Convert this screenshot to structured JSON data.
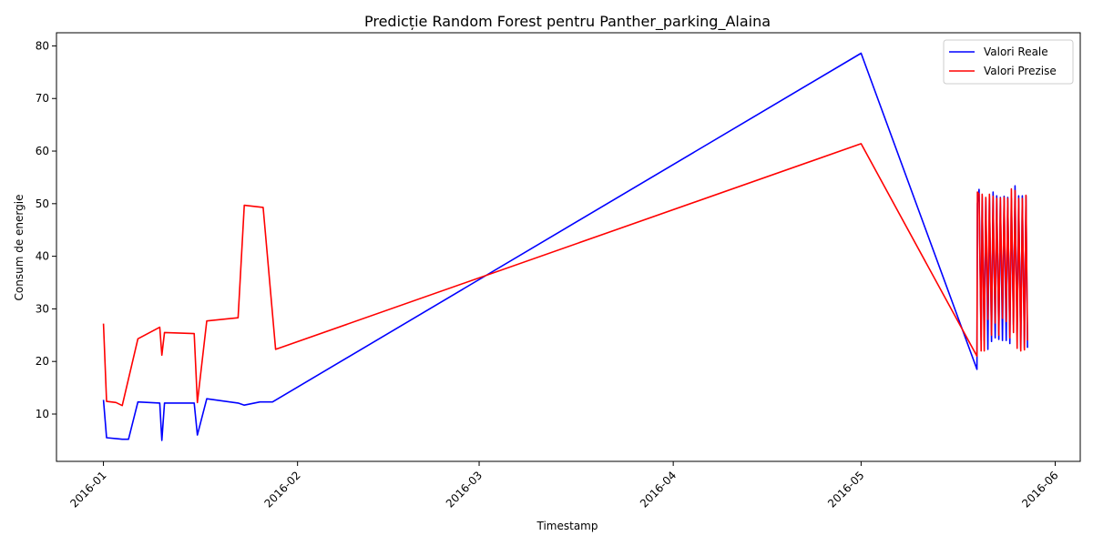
{
  "chart_data": {
    "type": "line",
    "title": "Predicție Random Forest pentru Panther_parking_Alaina",
    "xlabel": "Timestamp",
    "ylabel": "Consum de energie",
    "x_axis_type": "date",
    "xlim": [
      "2015-12-24T12:00",
      "2016-06-05"
    ],
    "ylim": [
      1,
      82.5
    ],
    "x_ticks": [
      "2016-01-01",
      "2016-02-01",
      "2016-03-01",
      "2016-04-01",
      "2016-05-01",
      "2016-06-01"
    ],
    "x_tick_labels": [
      "2016-01",
      "2016-02",
      "2016-03",
      "2016-04",
      "2016-05",
      "2016-06"
    ],
    "y_ticks": [
      10,
      20,
      30,
      40,
      50,
      60,
      70,
      80
    ],
    "legend_position": "top-right",
    "grid": false,
    "series": [
      {
        "name": "Valori Reale",
        "color": "#0000ff",
        "points": [
          [
            "2016-01-01T00:00",
            12.7
          ],
          [
            "2016-01-01T12:00",
            5.5
          ],
          [
            "2016-01-04T00:00",
            5.2
          ],
          [
            "2016-01-05T00:00",
            5.2
          ],
          [
            "2016-01-06T12:00",
            12.3
          ],
          [
            "2016-01-10T00:00",
            12.1
          ],
          [
            "2016-01-10T08:00",
            5.0
          ],
          [
            "2016-01-10T18:00",
            12.1
          ],
          [
            "2016-01-15T12:00",
            12.1
          ],
          [
            "2016-01-16T00:00",
            6.0
          ],
          [
            "2016-01-17T12:00",
            12.9
          ],
          [
            "2016-01-22T12:00",
            12.1
          ],
          [
            "2016-01-23T12:00",
            11.7
          ],
          [
            "2016-01-26T00:00",
            12.3
          ],
          [
            "2016-01-28T00:00",
            12.3
          ],
          [
            "2016-05-01T00:00",
            78.6
          ],
          [
            "2016-05-19T12:00",
            18.5
          ],
          [
            "2016-05-19T14:00",
            50.0
          ],
          [
            "2016-05-19T20:00",
            52.7
          ],
          [
            "2016-05-20T04:00",
            24.0
          ],
          [
            "2016-05-20T08:00",
            51.6
          ],
          [
            "2016-05-20T16:00",
            24.0
          ],
          [
            "2016-05-20T22:00",
            51.0
          ],
          [
            "2016-05-21T06:00",
            22.3
          ],
          [
            "2016-05-21T12:00",
            51.5
          ],
          [
            "2016-05-21T20:00",
            23.8
          ],
          [
            "2016-05-22T02:00",
            52.2
          ],
          [
            "2016-05-22T10:00",
            24.5
          ],
          [
            "2016-05-22T16:00",
            51.5
          ],
          [
            "2016-05-23T00:00",
            24.2
          ],
          [
            "2016-05-23T06:00",
            51.2
          ],
          [
            "2016-05-23T14:00",
            24.0
          ],
          [
            "2016-05-23T20:00",
            51.4
          ],
          [
            "2016-05-24T04:00",
            24.0
          ],
          [
            "2016-05-24T10:00",
            51.2
          ],
          [
            "2016-05-24T18:00",
            23.4
          ],
          [
            "2016-05-25T00:00",
            51.0
          ],
          [
            "2016-05-25T08:00",
            27.0
          ],
          [
            "2016-05-25T14:00",
            53.4
          ],
          [
            "2016-05-25T22:00",
            25.0
          ],
          [
            "2016-05-26T04:00",
            51.5
          ],
          [
            "2016-05-26T12:00",
            22.3
          ],
          [
            "2016-05-26T18:00",
            51.5
          ],
          [
            "2016-05-27T02:00",
            22.5
          ],
          [
            "2016-05-27T08:00",
            51.5
          ],
          [
            "2016-05-27T14:00",
            22.6
          ]
        ]
      },
      {
        "name": "Valori Prezise",
        "color": "#ff0000",
        "points": [
          [
            "2016-01-01T00:00",
            27.2
          ],
          [
            "2016-01-01T12:00",
            12.4
          ],
          [
            "2016-01-03T00:00",
            12.2
          ],
          [
            "2016-01-04T00:00",
            11.6
          ],
          [
            "2016-01-06T12:00",
            24.3
          ],
          [
            "2016-01-10T00:00",
            26.5
          ],
          [
            "2016-01-10T08:00",
            21.2
          ],
          [
            "2016-01-10T18:00",
            25.5
          ],
          [
            "2016-01-15T12:00",
            25.3
          ],
          [
            "2016-01-16T00:00",
            12.2
          ],
          [
            "2016-01-17T12:00",
            27.7
          ],
          [
            "2016-01-22T12:00",
            28.3
          ],
          [
            "2016-01-23T12:00",
            49.7
          ],
          [
            "2016-01-26T12:00",
            49.3
          ],
          [
            "2016-01-28T12:00",
            22.3
          ],
          [
            "2016-05-01T00:00",
            61.4
          ],
          [
            "2016-05-19T12:00",
            21.0
          ],
          [
            "2016-05-19T14:00",
            52.2
          ],
          [
            "2016-05-19T20:00",
            51.8
          ],
          [
            "2016-05-20T04:00",
            22.0
          ],
          [
            "2016-05-20T08:00",
            51.8
          ],
          [
            "2016-05-20T16:00",
            22.0
          ],
          [
            "2016-05-20T22:00",
            51.2
          ],
          [
            "2016-05-21T06:00",
            28.0
          ],
          [
            "2016-05-21T12:00",
            51.8
          ],
          [
            "2016-05-21T20:00",
            25.0
          ],
          [
            "2016-05-22T02:00",
            51.4
          ],
          [
            "2016-05-22T10:00",
            27.3
          ],
          [
            "2016-05-22T16:00",
            51.0
          ],
          [
            "2016-05-23T00:00",
            25.0
          ],
          [
            "2016-05-23T06:00",
            51.1
          ],
          [
            "2016-05-23T14:00",
            28.2
          ],
          [
            "2016-05-23T20:00",
            51.2
          ],
          [
            "2016-05-24T04:00",
            27.6
          ],
          [
            "2016-05-24T10:00",
            51.0
          ],
          [
            "2016-05-24T18:00",
            24.5
          ],
          [
            "2016-05-25T00:00",
            52.8
          ],
          [
            "2016-05-25T08:00",
            25.5
          ],
          [
            "2016-05-25T14:00",
            52.5
          ],
          [
            "2016-05-25T22:00",
            22.5
          ],
          [
            "2016-05-26T04:00",
            51.0
          ],
          [
            "2016-05-26T12:00",
            22.0
          ],
          [
            "2016-05-26T18:00",
            51.0
          ],
          [
            "2016-05-27T02:00",
            22.2
          ],
          [
            "2016-05-27T08:00",
            51.6
          ],
          [
            "2016-05-27T14:00",
            24.0
          ]
        ]
      }
    ]
  }
}
